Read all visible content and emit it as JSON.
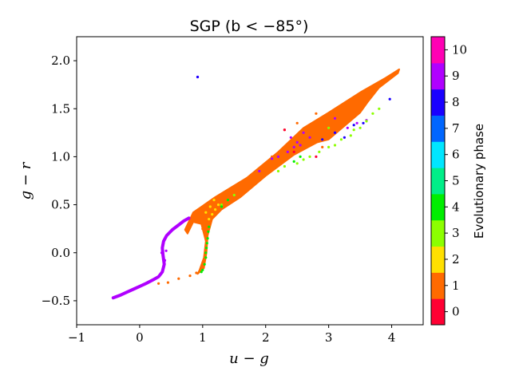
{
  "chart_data": {
    "type": "scatter",
    "title": "SGP (b < −85°)",
    "xlabel": "u − g",
    "ylabel": "g − r",
    "xlim": [
      -1,
      4.5
    ],
    "ylim": [
      -0.75,
      2.25
    ],
    "xticks": [
      -1,
      0,
      1,
      2,
      3,
      4
    ],
    "xtick_labels": [
      "−1",
      "0",
      "1",
      "2",
      "3",
      "4"
    ],
    "yticks": [
      -0.5,
      0.0,
      0.5,
      1.0,
      1.5,
      2.0
    ],
    "ytick_labels": [
      "−0.5",
      "0.0",
      "0.5",
      "1.0",
      "1.5",
      "2.0"
    ],
    "grid": false,
    "colorbar": {
      "label": "Evolutionary phase",
      "ticks": [
        0,
        1,
        2,
        3,
        4,
        5,
        6,
        7,
        8,
        9,
        10
      ],
      "tick_labels": [
        "0",
        "1",
        "2",
        "3",
        "4",
        "5",
        "6",
        "7",
        "8",
        "9",
        "10"
      ],
      "colors": [
        "#ff0033",
        "#ff6a00",
        "#ffe000",
        "#8cff00",
        "#00ee00",
        "#00ee88",
        "#00e6ff",
        "#0066ff",
        "#1a00ff",
        "#b000ff",
        "#ff00b4"
      ]
    },
    "series": [
      {
        "phase": 1,
        "color": "#ff6a00",
        "filled_region": [
          [
            0.72,
            0.24
          ],
          [
            0.85,
            0.42
          ],
          [
            1.2,
            0.58
          ],
          [
            1.7,
            0.78
          ],
          [
            2.2,
            1.05
          ],
          [
            2.6,
            1.3
          ],
          [
            3.0,
            1.46
          ],
          [
            3.5,
            1.67
          ],
          [
            3.9,
            1.82
          ],
          [
            4.12,
            1.91
          ],
          [
            4.1,
            1.87
          ],
          [
            3.8,
            1.72
          ],
          [
            3.62,
            1.57
          ],
          [
            3.5,
            1.46
          ],
          [
            3.0,
            1.18
          ],
          [
            2.82,
            1.15
          ],
          [
            2.45,
            1.02
          ],
          [
            2.0,
            0.8
          ],
          [
            1.6,
            0.58
          ],
          [
            1.3,
            0.45
          ],
          [
            1.15,
            0.35
          ],
          [
            1.08,
            0.18
          ],
          [
            1.06,
            0.0
          ],
          [
            1.02,
            -0.16
          ],
          [
            0.92,
            -0.22
          ],
          [
            0.95,
            -0.18
          ],
          [
            1.02,
            -0.05
          ],
          [
            1.05,
            0.12
          ],
          [
            0.98,
            0.3
          ],
          [
            0.85,
            0.32
          ],
          [
            0.76,
            0.2
          ]
        ],
        "points": [
          [
            0.3,
            -0.32
          ],
          [
            0.45,
            -0.31
          ],
          [
            0.62,
            -0.27
          ],
          [
            0.8,
            -0.24
          ],
          [
            0.9,
            -0.21
          ],
          [
            1.0,
            0.25
          ],
          [
            1.1,
            0.3
          ],
          [
            1.2,
            0.4
          ],
          [
            2.3,
            1.28
          ],
          [
            2.5,
            1.35
          ],
          [
            2.8,
            1.45
          ],
          [
            3.0,
            1.43
          ],
          [
            3.3,
            1.52
          ],
          [
            2.9,
            1.1
          ],
          [
            2.1,
            1.0
          ]
        ]
      },
      {
        "phase": 9,
        "color": "#b000ff",
        "curve": [
          [
            -0.42,
            -0.47
          ],
          [
            -0.3,
            -0.44
          ],
          [
            -0.2,
            -0.41
          ],
          [
            -0.1,
            -0.38
          ],
          [
            0.0,
            -0.35
          ],
          [
            0.1,
            -0.32
          ],
          [
            0.22,
            -0.28
          ],
          [
            0.3,
            -0.25
          ],
          [
            0.36,
            -0.2
          ],
          [
            0.39,
            -0.12
          ],
          [
            0.37,
            -0.02
          ],
          [
            0.36,
            0.05
          ],
          [
            0.38,
            0.12
          ],
          [
            0.43,
            0.18
          ],
          [
            0.52,
            0.24
          ],
          [
            0.62,
            0.29
          ],
          [
            0.7,
            0.33
          ],
          [
            0.78,
            0.36
          ]
        ],
        "points": [
          [
            0.92,
            1.83
          ],
          [
            0.35,
            0.0
          ],
          [
            0.4,
            -0.08
          ],
          [
            0.42,
            0.02
          ],
          [
            1.9,
            0.85
          ],
          [
            2.1,
            0.98
          ],
          [
            2.2,
            1.0
          ],
          [
            2.35,
            1.05
          ],
          [
            2.45,
            1.1
          ],
          [
            2.5,
            1.15
          ],
          [
            2.55,
            1.12
          ],
          [
            2.4,
            1.2
          ],
          [
            2.6,
            1.25
          ],
          [
            2.7,
            1.2
          ],
          [
            3.1,
            1.25
          ],
          [
            3.3,
            1.3
          ],
          [
            3.45,
            1.35
          ],
          [
            3.1,
            1.4
          ],
          [
            3.6,
            1.38
          ]
        ]
      },
      {
        "phase": 3,
        "color": "#8cff00",
        "points": [
          [
            2.5,
            0.93
          ],
          [
            2.6,
            0.97
          ],
          [
            2.7,
            1.0
          ],
          [
            2.85,
            1.05
          ],
          [
            3.0,
            1.1
          ],
          [
            3.1,
            1.12
          ],
          [
            3.2,
            1.18
          ],
          [
            3.35,
            1.22
          ],
          [
            3.5,
            1.3
          ],
          [
            3.6,
            1.37
          ],
          [
            3.7,
            1.45
          ],
          [
            3.8,
            1.5
          ],
          [
            2.3,
            0.9
          ],
          [
            2.2,
            0.85
          ],
          [
            1.5,
            0.6
          ],
          [
            1.3,
            0.5
          ],
          [
            3.0,
            1.3
          ],
          [
            3.4,
            1.28
          ]
        ]
      },
      {
        "phase": 4,
        "color": "#00ee00",
        "points": [
          [
            1.05,
            0.0
          ],
          [
            1.06,
            0.05
          ],
          [
            1.07,
            0.1
          ],
          [
            1.05,
            -0.05
          ],
          [
            1.03,
            -0.12
          ],
          [
            1.0,
            -0.18
          ],
          [
            0.98,
            -0.2
          ],
          [
            1.08,
            0.15
          ],
          [
            1.09,
            0.22
          ],
          [
            1.1,
            0.27
          ],
          [
            2.45,
            0.95
          ],
          [
            2.55,
            1.0
          ],
          [
            1.3,
            0.48
          ],
          [
            1.4,
            0.55
          ]
        ]
      },
      {
        "phase": 2,
        "color": "#ffe000",
        "points": [
          [
            1.1,
            0.35
          ],
          [
            1.15,
            0.4
          ],
          [
            1.2,
            0.45
          ],
          [
            1.12,
            0.48
          ],
          [
            1.25,
            0.5
          ],
          [
            1.18,
            0.55
          ],
          [
            1.05,
            0.42
          ]
        ]
      },
      {
        "phase": 8,
        "color": "#1a00ff",
        "points": [
          [
            0.92,
            1.83
          ],
          [
            3.97,
            1.6
          ],
          [
            3.1,
            1.25
          ],
          [
            3.25,
            1.2
          ],
          [
            3.4,
            1.33
          ],
          [
            3.55,
            1.35
          ],
          [
            2.9,
            1.18
          ]
        ]
      },
      {
        "phase": 0,
        "color": "#ff0033",
        "points": [
          [
            2.3,
            1.28
          ],
          [
            2.8,
            1.0
          ],
          [
            2.45,
            1.05
          ]
        ]
      }
    ]
  }
}
